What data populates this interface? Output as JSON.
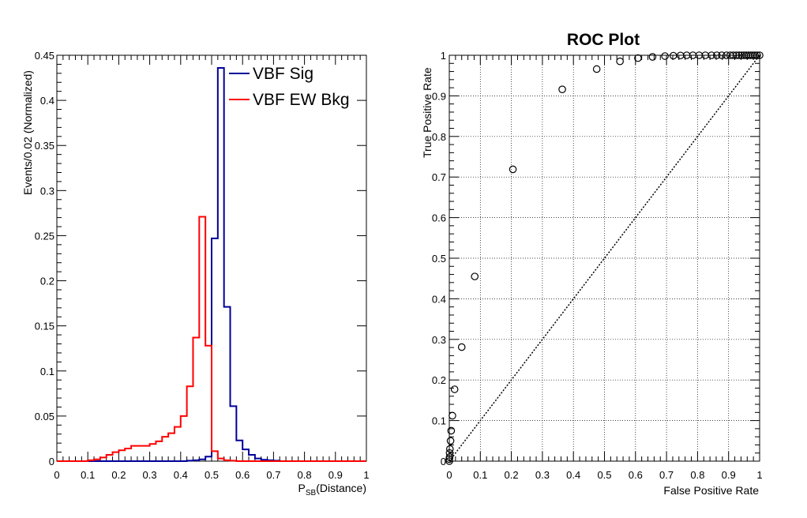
{
  "chart_data": [
    {
      "type": "line",
      "style": "step-histogram",
      "title": "",
      "xlabel": "P_SB(Distance)",
      "xlabel_main": "P",
      "xlabel_sub": "SB",
      "xlabel_tail": "(Distance)",
      "ylabel": "Events/0.02 (Normalized)",
      "xlim": [
        0,
        1
      ],
      "ylim": [
        0,
        0.45
      ],
      "xticks": [
        "0",
        "0.1",
        "0.2",
        "0.3",
        "0.4",
        "0.5",
        "0.6",
        "0.7",
        "0.8",
        "0.9",
        "1"
      ],
      "yticks": [
        "0",
        "0.05",
        "0.1",
        "0.15",
        "0.2",
        "0.25",
        "0.3",
        "0.35",
        "0.4",
        "0.45"
      ],
      "grid": false,
      "legend_position": "top-right",
      "bin_width": 0.02,
      "bin_edges_start": 0.0,
      "series": [
        {
          "name": "VBF Sig",
          "color": "#000099",
          "values": [
            0,
            0,
            0,
            0,
            0,
            0,
            0,
            0,
            0,
            0,
            0,
            0,
            0,
            0,
            0,
            0,
            0,
            0,
            0,
            0,
            0,
            0.0005,
            0.001,
            0.002,
            0.005,
            0.247,
            0.436,
            0.171,
            0.061,
            0.023,
            0.013,
            0.007,
            0.003,
            0.0015,
            0.001,
            0.0005,
            0,
            0,
            0,
            0,
            0,
            0,
            0,
            0,
            0,
            0,
            0,
            0,
            0,
            0
          ]
        },
        {
          "name": "VBF EW Bkg",
          "color": "#ff0000",
          "values": [
            0,
            0,
            0,
            0,
            0,
            0.001,
            0.002,
            0.004,
            0.007,
            0.01,
            0.012,
            0.014,
            0.017,
            0.017,
            0.017,
            0.019,
            0.022,
            0.027,
            0.031,
            0.038,
            0.05,
            0.083,
            0.137,
            0.271,
            0.128,
            0.011,
            0.003,
            0.001,
            0.0005,
            0,
            0,
            0,
            0,
            0,
            0,
            0,
            0,
            0,
            0,
            0,
            0,
            0,
            0,
            0,
            0,
            0,
            0,
            0,
            0,
            0
          ]
        }
      ]
    },
    {
      "type": "scatter",
      "title": "ROC Plot",
      "xlabel": "False Positive Rate",
      "ylabel": "True Positive Rate",
      "xlim": [
        0,
        1
      ],
      "ylim": [
        0,
        1
      ],
      "xticks": [
        "0",
        "0.1",
        "0.2",
        "0.3",
        "0.4",
        "0.5",
        "0.6",
        "0.7",
        "0.8",
        "0.9",
        "1"
      ],
      "yticks": [
        "0",
        "0.1",
        "0.2",
        "0.3",
        "0.4",
        "0.5",
        "0.6",
        "0.7",
        "0.8",
        "0.9",
        "1"
      ],
      "grid": true,
      "diagonal_reference": true,
      "marker": "open-circle",
      "points": [
        [
          0.0,
          0.0
        ],
        [
          0.0,
          0.005
        ],
        [
          0.001,
          0.01
        ],
        [
          0.001,
          0.02
        ],
        [
          0.002,
          0.03
        ],
        [
          0.004,
          0.05
        ],
        [
          0.006,
          0.075
        ],
        [
          0.01,
          0.112
        ],
        [
          0.017,
          0.177
        ],
        [
          0.04,
          0.281
        ],
        [
          0.082,
          0.455
        ],
        [
          0.205,
          0.719
        ],
        [
          0.364,
          0.916
        ],
        [
          0.475,
          0.966
        ],
        [
          0.55,
          0.985
        ],
        [
          0.608,
          0.993
        ],
        [
          0.655,
          0.996
        ],
        [
          0.695,
          0.998
        ],
        [
          0.722,
          0.999
        ],
        [
          0.745,
          0.9995
        ],
        [
          0.765,
          1.0
        ],
        [
          0.785,
          1.0
        ],
        [
          0.805,
          1.0
        ],
        [
          0.825,
          1.0
        ],
        [
          0.845,
          1.0
        ],
        [
          0.862,
          1.0
        ],
        [
          0.878,
          1.0
        ],
        [
          0.893,
          1.0
        ],
        [
          0.905,
          1.0
        ],
        [
          0.915,
          1.0
        ],
        [
          0.925,
          1.0
        ],
        [
          0.934,
          1.0
        ],
        [
          0.942,
          1.0
        ],
        [
          0.95,
          1.0
        ],
        [
          0.957,
          1.0
        ],
        [
          0.964,
          1.0
        ],
        [
          0.971,
          1.0
        ],
        [
          0.978,
          1.0
        ],
        [
          0.985,
          1.0
        ],
        [
          0.992,
          1.0
        ],
        [
          1.0,
          1.0
        ]
      ]
    }
  ]
}
